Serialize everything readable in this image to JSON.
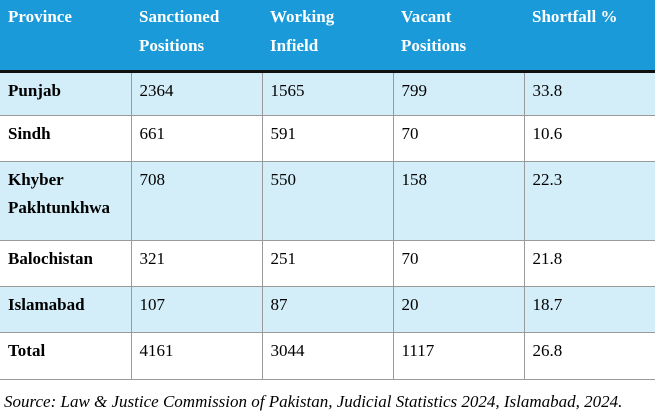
{
  "table": {
    "headers": [
      {
        "line1": "Province",
        "line2": ""
      },
      {
        "line1": "Sanctioned",
        "line2": "Positions"
      },
      {
        "line1": "Working",
        "line2": "Infield"
      },
      {
        "line1": "Vacant",
        "line2": "Positions"
      },
      {
        "line1": "Shortfall %",
        "line2": ""
      }
    ],
    "rows": [
      {
        "province": "Punjab",
        "province2": "",
        "sanctioned": "2364",
        "working": "1565",
        "vacant": "799",
        "shortfall": "33.8"
      },
      {
        "province": "Sindh",
        "province2": "",
        "sanctioned": "661",
        "working": "591",
        "vacant": "70",
        "shortfall": "10.6"
      },
      {
        "province": "Khyber",
        "province2": "Pakhtunkhwa",
        "sanctioned": "708",
        "working": "550",
        "vacant": "158",
        "shortfall": "22.3"
      },
      {
        "province": "Balochistan",
        "province2": "",
        "sanctioned": "321",
        "working": "251",
        "vacant": "70",
        "shortfall": "21.8"
      },
      {
        "province": "Islamabad",
        "province2": "",
        "sanctioned": "107",
        "working": "87",
        "vacant": "20",
        "shortfall": "18.7"
      },
      {
        "province": "Total",
        "province2": "",
        "sanctioned": "4161",
        "working": "3044",
        "vacant": "1117",
        "shortfall": "26.8"
      }
    ],
    "colors": {
      "header_bg": "#1a9ad9",
      "header_text": "#ffffff",
      "shaded_row": "#d3eef9",
      "plain_row": "#ffffff"
    }
  },
  "source": "Source: Law & Justice Commission of Pakistan, Judicial Statistics 2024, Islamabad, 2024."
}
